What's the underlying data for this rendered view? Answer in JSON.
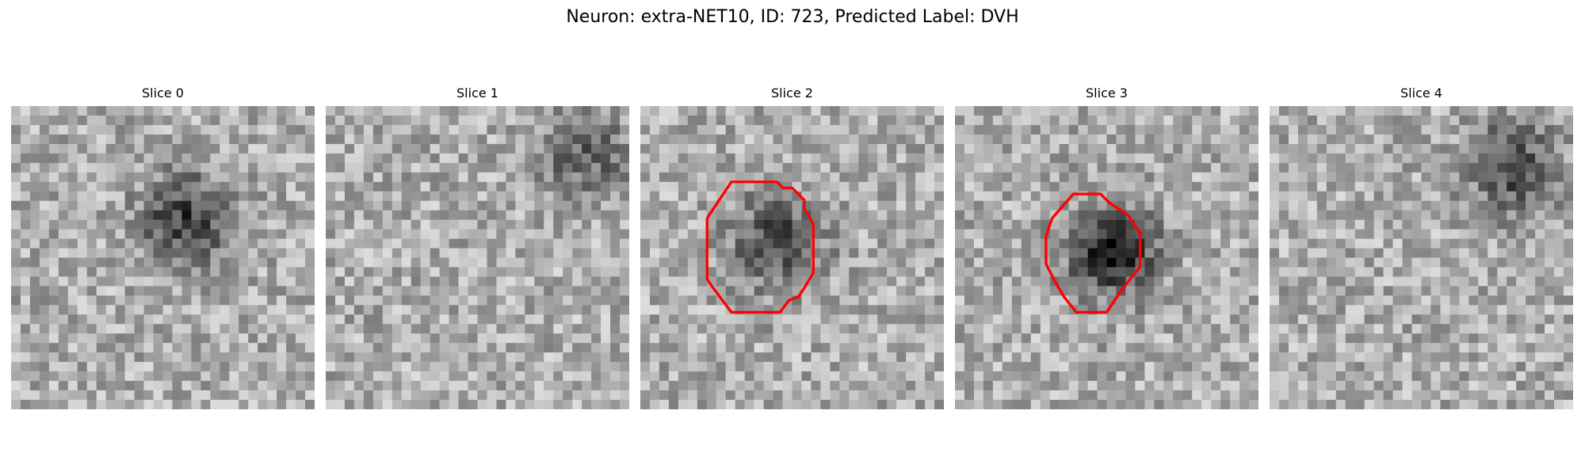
{
  "figure": {
    "title": "Neuron: extra-NET10, ID: 723, Predicted Label: DVH"
  },
  "panels": [
    {
      "title": "Slice 0",
      "has_contour": false,
      "dark_blob": [
        0.58,
        0.38
      ],
      "dark_strength": 0.45
    },
    {
      "title": "Slice 1",
      "has_contour": false,
      "dark_blob": [
        0.85,
        0.15
      ],
      "dark_strength": 0.3
    },
    {
      "title": "Slice 2",
      "has_contour": true,
      "dark_blob": [
        0.45,
        0.45
      ],
      "dark_strength": 0.4
    },
    {
      "title": "Slice 3",
      "has_contour": true,
      "dark_blob": [
        0.52,
        0.48
      ],
      "dark_strength": 0.55
    },
    {
      "title": "Slice 4",
      "has_contour": false,
      "dark_blob": [
        0.8,
        0.2
      ],
      "dark_strength": 0.4
    }
  ],
  "style": {
    "contour_color": "#ff0000",
    "colormap": "gray"
  }
}
